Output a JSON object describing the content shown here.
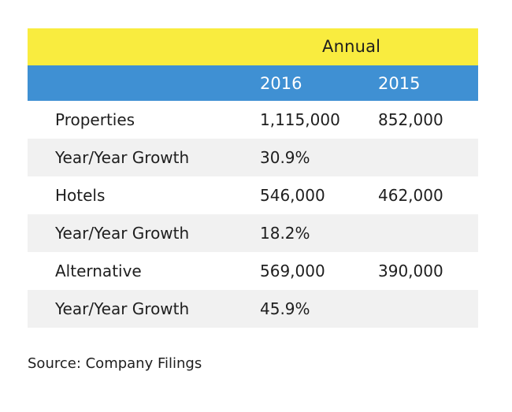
{
  "chart_data": {
    "type": "table",
    "header": "Annual",
    "columns": [
      "2016",
      "2015"
    ],
    "rows": [
      {
        "metric": "Properties",
        "y2016": "1,115,000",
        "y2015": "852,000"
      },
      {
        "metric": "Year/Year Growth",
        "y2016": "30.9%",
        "y2015": ""
      },
      {
        "metric": "Hotels",
        "y2016": "546,000",
        "y2015": "462,000"
      },
      {
        "metric": "Year/Year Growth",
        "y2016": "18.2%",
        "y2015": ""
      },
      {
        "metric": "Alternative",
        "y2016": "569,000",
        "y2015": "390,000"
      },
      {
        "metric": "Year/Year Growth",
        "y2016": "45.9%",
        "y2015": ""
      }
    ],
    "source": "Source: Company Filings"
  },
  "colors": {
    "header_yellow": "#f9ec3f",
    "header_blue": "#3f90d3",
    "row_shade": "#f1f1f1"
  }
}
